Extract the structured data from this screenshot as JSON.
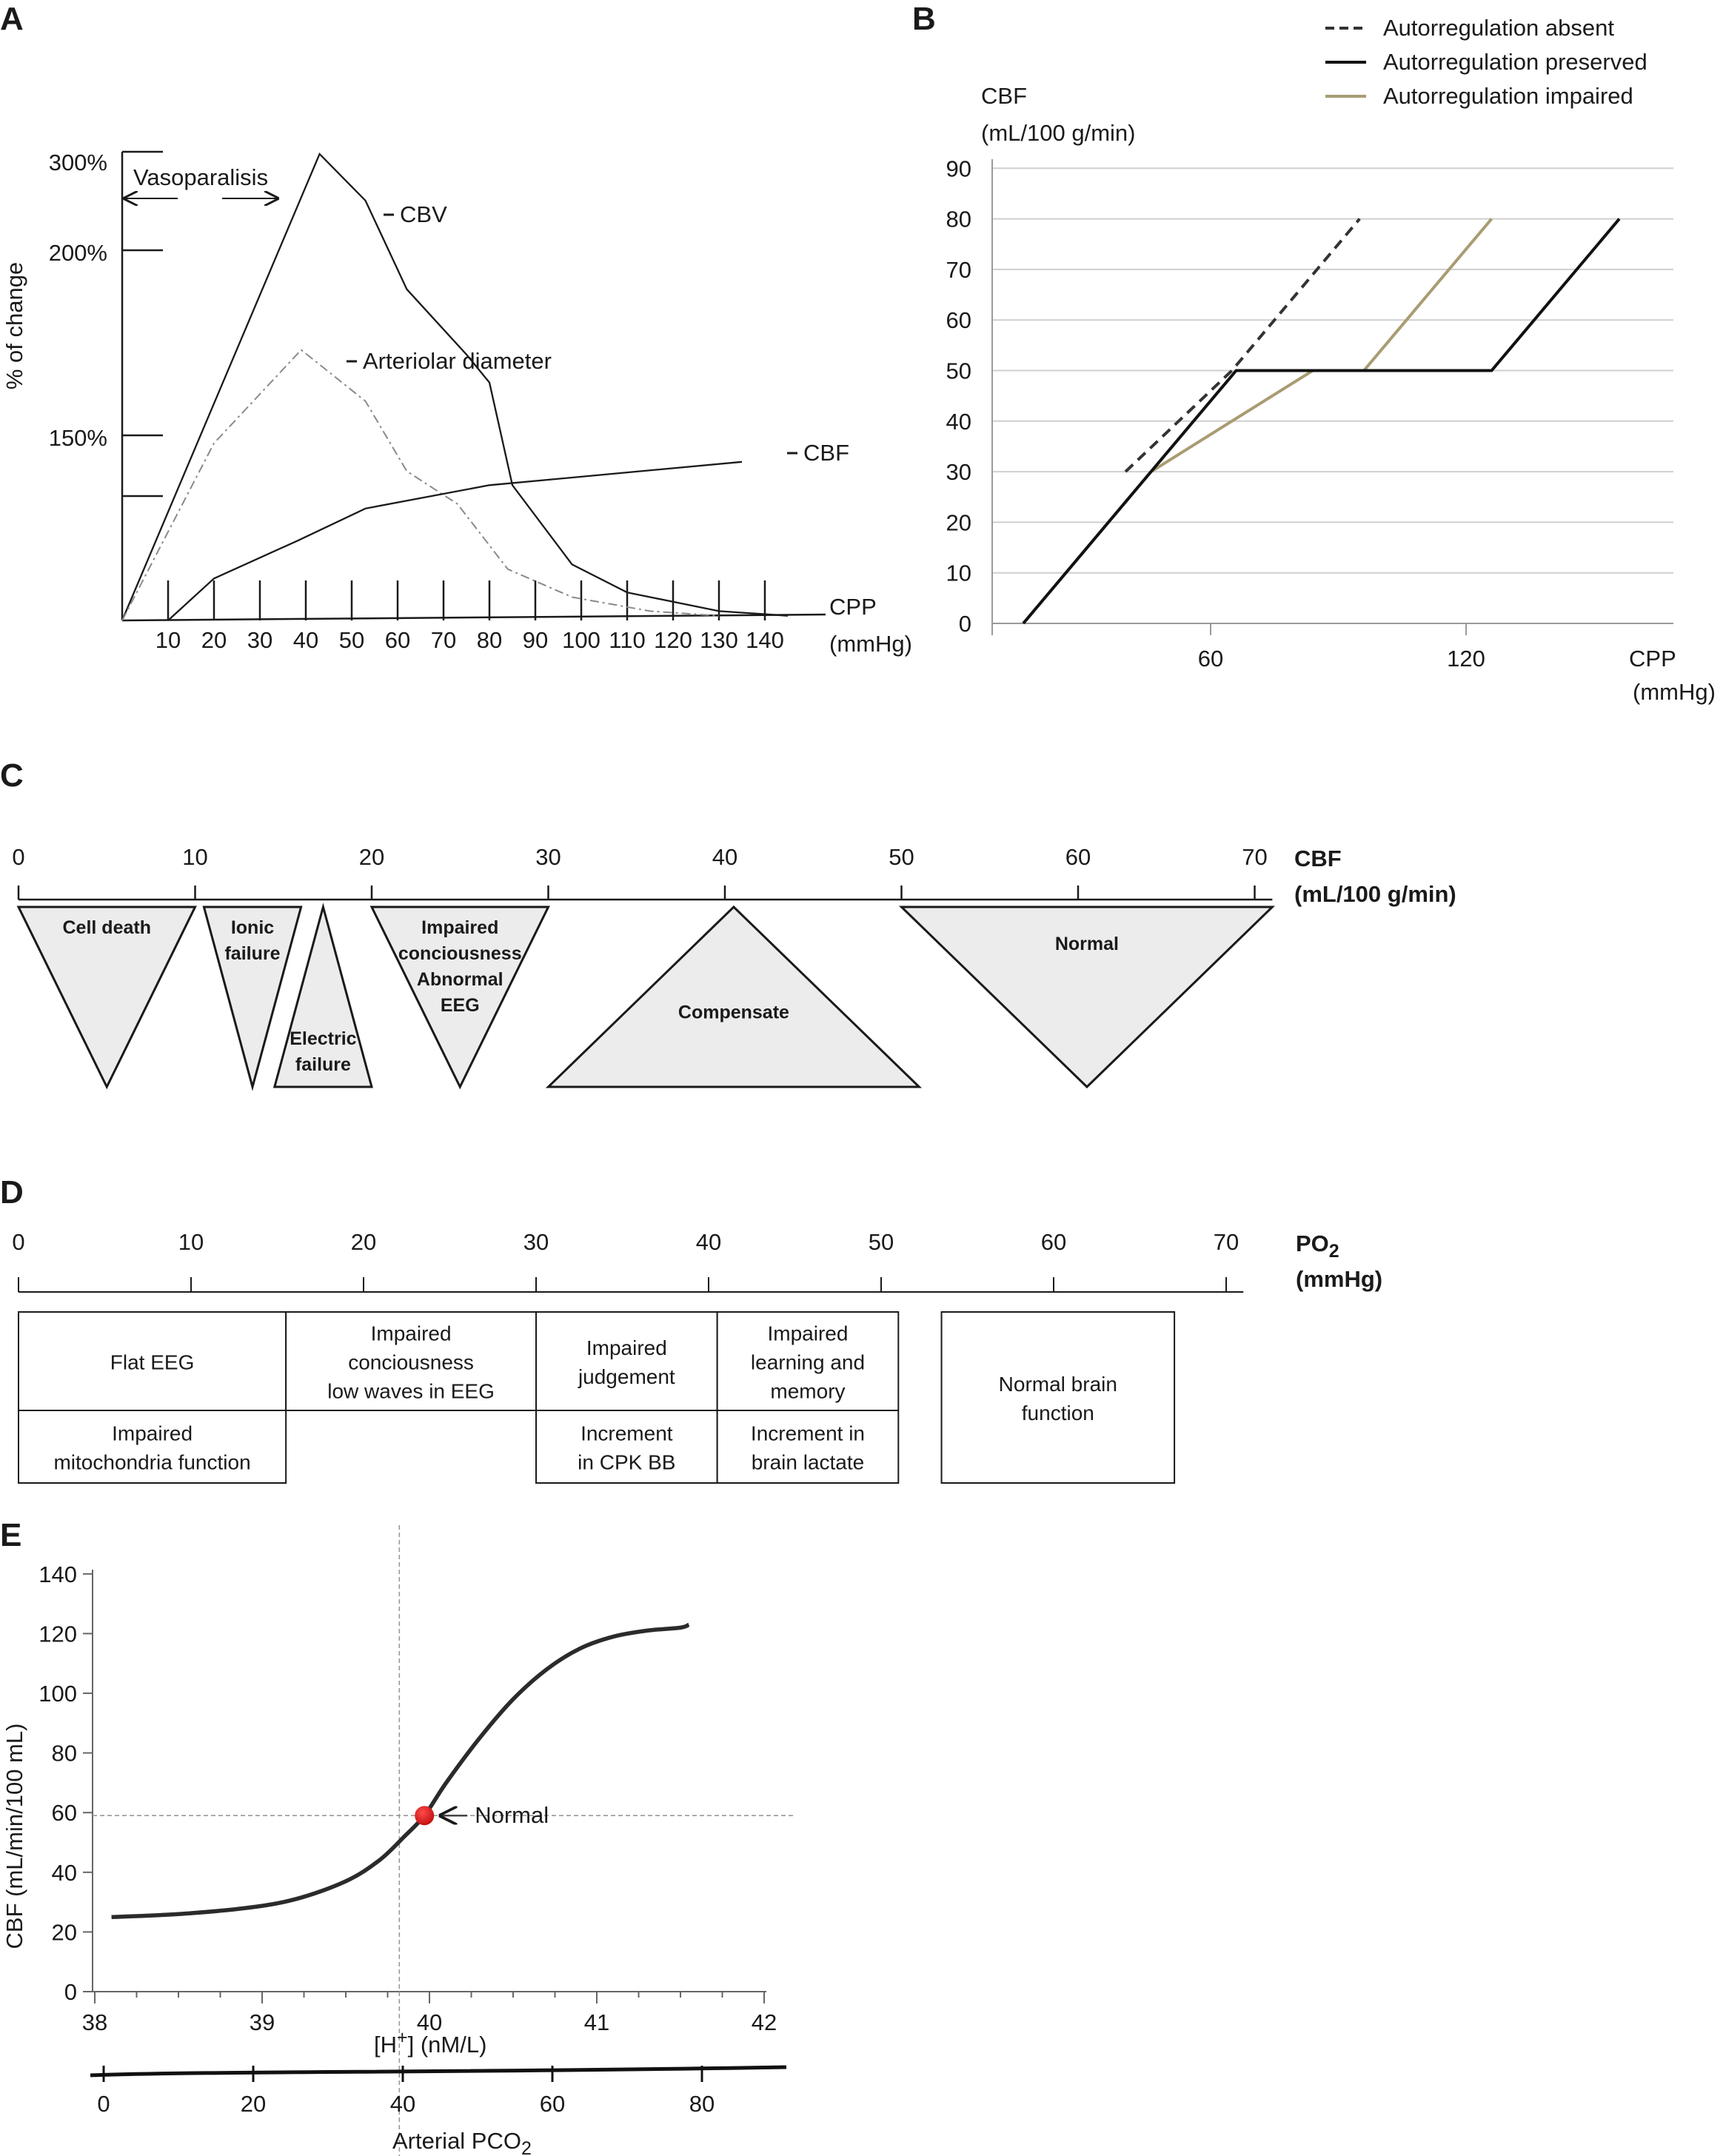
{
  "chart_data": [
    {
      "id": "A",
      "type": "line",
      "panel_label": "A",
      "xlabel": "CPP",
      "xunit": "(mmHg)",
      "ylabel": "% of change",
      "x_ticks": [
        10,
        20,
        30,
        40,
        50,
        60,
        70,
        80,
        90,
        100,
        110,
        120,
        130,
        140
      ],
      "xlim": [
        0,
        140
      ],
      "y_tick_labels": [
        "300%",
        "200%",
        "150%"
      ],
      "annotation": "Vasoparalisis",
      "series": [
        {
          "name": "CBV",
          "x": [
            0,
            43,
            53,
            62,
            75,
            80,
            85,
            98,
            110,
            130,
            145
          ],
          "y": [
            0,
            100,
            90,
            71,
            57,
            51,
            29,
            12,
            6,
            2,
            1
          ]
        },
        {
          "name": "Arteriolar diameter",
          "x": [
            0,
            20,
            39,
            53,
            62,
            73,
            84,
            98,
            115,
            130
          ],
          "y": [
            0,
            38,
            58,
            47,
            32,
            25,
            11,
            5,
            2,
            1
          ]
        },
        {
          "name": "CBF",
          "x": [
            10,
            20,
            38,
            53,
            80,
            135
          ],
          "y": [
            0,
            9,
            17,
            24,
            29,
            34
          ]
        }
      ]
    },
    {
      "id": "B",
      "type": "line",
      "panel_label": "B",
      "ylabel": "CBF",
      "yunit": "(mL/100 g/min)",
      "xlabel": "CPP",
      "xunit": "(mmHg)",
      "y_ticks": [
        0,
        10,
        20,
        30,
        40,
        50,
        60,
        70,
        80,
        90
      ],
      "ylim": [
        0,
        90
      ],
      "x_ticks": [
        60,
        120
      ],
      "legend": "top-right",
      "grid": true,
      "series": [
        {
          "name": "Autorregulation absent",
          "style": "dashed",
          "color": "#333333",
          "x": [
            40,
            65,
            95
          ],
          "y": [
            30,
            50,
            80
          ]
        },
        {
          "name": "Autorregulation preserved",
          "style": "solid",
          "color": "#111111",
          "x": [
            16,
            46,
            66,
            126,
            156
          ],
          "y": [
            0,
            30,
            50,
            50,
            80
          ]
        },
        {
          "name": "Autorregulation impaired",
          "style": "solid",
          "color": "#a89c72",
          "x": [
            16,
            46,
            84,
            96,
            126
          ],
          "y": [
            0,
            30,
            50,
            50,
            80
          ]
        }
      ]
    },
    {
      "id": "C",
      "type": "other",
      "panel_label": "C",
      "xlabel": "CBF",
      "xunit": "(mL/100 g/min)",
      "x_ticks": [
        0,
        10,
        20,
        30,
        40,
        50,
        60,
        70
      ],
      "regions": [
        {
          "lines": [
            "Cell death"
          ],
          "orient": "down",
          "from": 0,
          "to": 10
        },
        {
          "lines": [
            "Ionic",
            "failure"
          ],
          "orient": "down",
          "from": 10.5,
          "to": 16
        },
        {
          "lines": [
            "Electric",
            "failure"
          ],
          "orient": "up",
          "from": 14.5,
          "to": 20
        },
        {
          "lines": [
            "Impaired",
            "conciousness",
            "Abnormal",
            "EEG"
          ],
          "orient": "down",
          "from": 20,
          "to": 30
        },
        {
          "lines": [
            "Compensate"
          ],
          "orient": "up",
          "from": 30,
          "to": 51
        },
        {
          "lines": [
            "Normal"
          ],
          "orient": "down",
          "from": 50,
          "to": 71
        }
      ]
    },
    {
      "id": "D",
      "type": "other",
      "panel_label": "D",
      "xlabel": "PO",
      "xlabel_sub": "2",
      "xunit": "(mmHg)",
      "x_ticks": [
        0,
        10,
        20,
        30,
        40,
        50,
        60,
        70
      ],
      "boxes": [
        {
          "from": 0,
          "to": 15.5,
          "top": [
            "Flat EEG"
          ],
          "bottom": [
            "Impaired",
            "mitochondria function"
          ]
        },
        {
          "from": 15.5,
          "to": 30,
          "top": [
            "Impaired",
            "conciousness",
            "low waves in EEG"
          ],
          "bottom": []
        },
        {
          "from": 30,
          "to": 40.5,
          "top": [
            "Impaired",
            "judgement"
          ],
          "bottom": [
            "Increment",
            "in CPK BB"
          ]
        },
        {
          "from": 40.5,
          "to": 51,
          "top": [
            "Impaired",
            "learning and",
            "memory"
          ],
          "bottom": [
            "Increment in",
            "brain lactate"
          ]
        },
        {
          "from": 53.5,
          "to": 67,
          "top": [
            "Normal brain",
            "function"
          ],
          "bottom": []
        }
      ]
    },
    {
      "id": "E",
      "type": "line",
      "panel_label": "E",
      "ylabel": "CBF (mL/min/100 mL)",
      "xlabel": "[H",
      "xlabel_sup": "+",
      "xlabel_tail": "] (nM/L)",
      "x_ticks": [
        38,
        39,
        40,
        41,
        42
      ],
      "xlim": [
        38,
        42
      ],
      "y_ticks": [
        0,
        20,
        40,
        60,
        80,
        100,
        120,
        140
      ],
      "ylim": [
        0,
        140
      ],
      "secondary_axis_label": "Arterial PCO",
      "secondary_axis_sub": "2",
      "secondary_ticks": [
        0,
        20,
        40,
        60,
        80
      ],
      "annotation": "Normal",
      "normal_point": {
        "x": 39.97,
        "y": 59
      },
      "reference_lines": {
        "x": 39.82,
        "y": 59
      },
      "series": [
        {
          "x": [
            38.1,
            38.5,
            38.9,
            39.2,
            39.5,
            39.7,
            39.85,
            39.97,
            40.1,
            40.3,
            40.5,
            40.7,
            40.9,
            41.1,
            41.3,
            41.5,
            41.55
          ],
          "y": [
            25,
            26,
            28,
            31,
            37,
            44,
            52,
            59,
            70,
            85,
            98,
            108,
            115,
            119,
            121,
            122,
            123
          ]
        }
      ]
    }
  ]
}
